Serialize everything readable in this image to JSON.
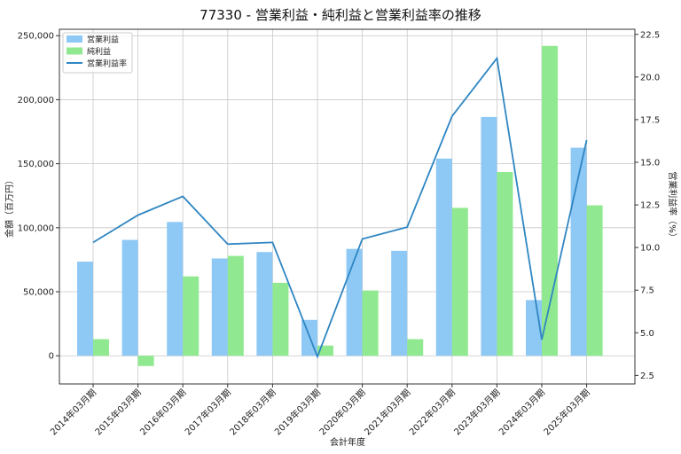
{
  "chart_data": {
    "type": "bar+line",
    "title": "77330 - 営業利益・純利益と営業利益率の推移",
    "xlabel": "会計年度",
    "ylabel_left": "金額（百万円）",
    "ylabel_right": "営業利益率（%）",
    "categories": [
      "2014年03月期",
      "2015年03月期",
      "2016年03月期",
      "2017年03月期",
      "2018年03月期",
      "2019年03月期",
      "2020年03月期",
      "2021年03月期",
      "2022年03月期",
      "2023年03月期",
      "2024年03月期",
      "2025年03月期"
    ],
    "series": [
      {
        "name": "営業利益",
        "kind": "bar",
        "axis": "left",
        "color": "#8ec8f5",
        "values": [
          73500,
          90500,
          104500,
          76000,
          81000,
          28000,
          83500,
          82000,
          154000,
          186500,
          43500,
          162500
        ]
      },
      {
        "name": "純利益",
        "kind": "bar",
        "axis": "left",
        "color": "#90e990",
        "values": [
          13000,
          -8000,
          62000,
          78000,
          57000,
          8000,
          51000,
          13000,
          115500,
          143500,
          242000,
          117500
        ]
      },
      {
        "name": "営業利益率",
        "kind": "line",
        "axis": "right",
        "color": "#2f86c2",
        "values": [
          10.3,
          11.9,
          13.0,
          10.2,
          10.3,
          3.6,
          10.5,
          11.2,
          17.7,
          21.1,
          4.6,
          16.3
        ]
      }
    ],
    "ylim_left": [
      -22000,
      255000
    ],
    "yticks_left": [
      0,
      50000,
      100000,
      150000,
      200000,
      250000
    ],
    "yticklabels_left": [
      "0",
      "50,000",
      "100,000",
      "150,000",
      "200,000",
      "250,000"
    ],
    "ylim_right": [
      2.0,
      22.8
    ],
    "yticks_right": [
      2.5,
      5.0,
      7.5,
      10.0,
      12.5,
      15.0,
      17.5,
      20.0,
      22.5
    ],
    "yticklabels_right": [
      "2.5",
      "5.0",
      "7.5",
      "10.0",
      "12.5",
      "15.0",
      "17.5",
      "20.0",
      "22.5"
    ],
    "grid": true,
    "legend": "top-left"
  }
}
